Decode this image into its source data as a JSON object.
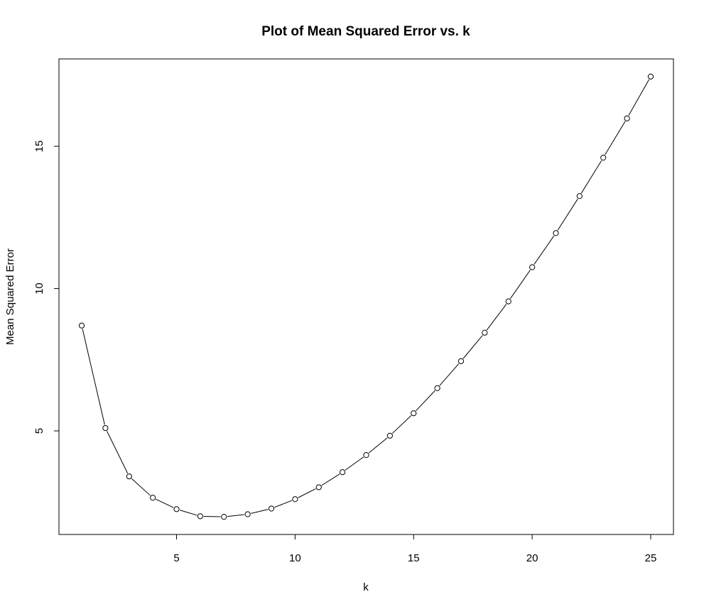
{
  "chart_data": {
    "type": "line",
    "title": "Plot of Mean Squared Error vs. k",
    "xlabel": "k",
    "ylabel": "Mean Squared Error",
    "x": [
      1,
      2,
      3,
      4,
      5,
      6,
      7,
      8,
      9,
      10,
      11,
      12,
      13,
      14,
      15,
      16,
      17,
      18,
      19,
      20,
      21,
      22,
      23,
      24,
      25
    ],
    "series": [
      {
        "values": [
          8.7,
          5.1,
          3.4,
          2.65,
          2.25,
          2.0,
          1.98,
          2.07,
          2.27,
          2.6,
          3.02,
          3.55,
          4.15,
          4.83,
          5.62,
          6.5,
          7.45,
          8.45,
          9.55,
          10.75,
          11.95,
          13.25,
          14.6,
          15.98,
          17.45
        ]
      }
    ],
    "xlim": [
      0.04,
      25.96
    ],
    "ylim": [
      1.36,
      18.07
    ],
    "xticks": [
      "5",
      "10",
      "15",
      "20",
      "25"
    ],
    "yticks": [
      "5",
      "10",
      "15"
    ],
    "marker": "open-circle",
    "grid": false,
    "colors": {
      "line": "#000000",
      "marker": "#000000",
      "background": "#ffffff"
    }
  }
}
